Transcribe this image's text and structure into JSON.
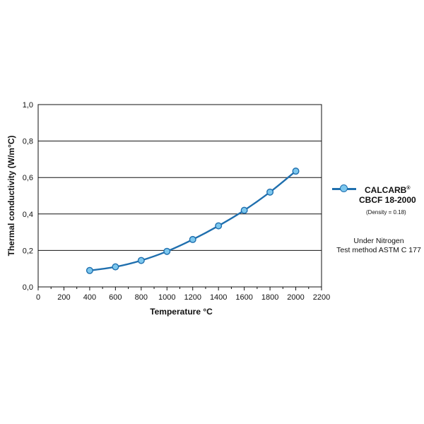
{
  "chart_data": {
    "type": "line",
    "xlabel": "Temperature °C",
    "ylabel": "Thermal conductivity (W/m°C)",
    "xlim": [
      0,
      2200
    ],
    "ylim": [
      0,
      1.0
    ],
    "x_ticks": [
      "0",
      "200",
      "400",
      "600",
      "800",
      "1000",
      "1200",
      "1400",
      "1600",
      "1800",
      "2000",
      "2200"
    ],
    "y_ticks": [
      "0,0",
      "0,2",
      "0,4",
      "0,6",
      "0,8",
      "1,0"
    ],
    "grid": "horizontal",
    "legend_position": "right",
    "series": [
      {
        "name": "CALCARB® CBCF 18-2000",
        "color": "#1f6fae",
        "marker_color": "#7cc7ee",
        "x": [
          400,
          600,
          800,
          1000,
          1200,
          1400,
          1600,
          1800,
          2000
        ],
        "y": [
          0.09,
          0.11,
          0.145,
          0.195,
          0.26,
          0.335,
          0.42,
          0.52,
          0.635
        ]
      }
    ]
  },
  "legend": {
    "name": "CALCARB",
    "reg": "®",
    "subname": "CBCF 18-2000",
    "density": "(Density = 0.18)"
  },
  "notes": {
    "line1": "Under Nitrogen",
    "line2": "Test method ASTM C 177"
  }
}
